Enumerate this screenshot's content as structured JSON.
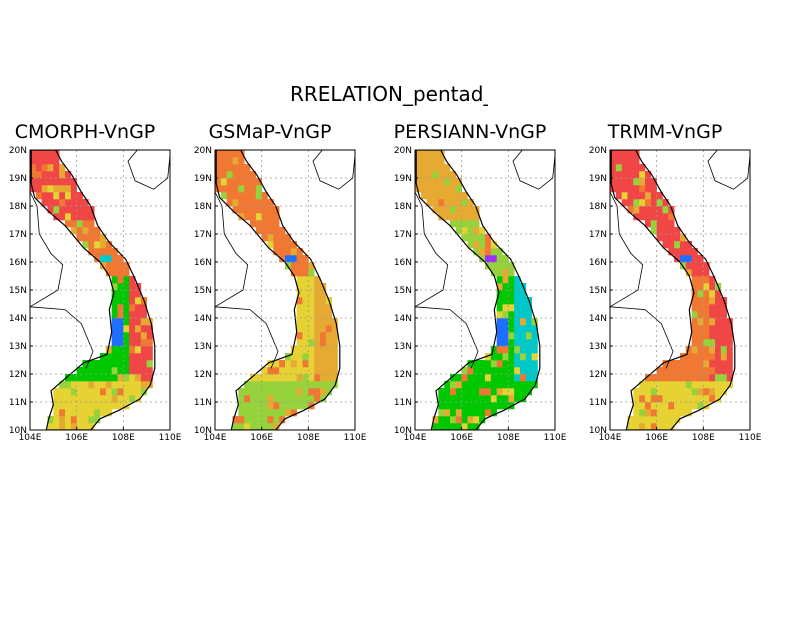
{
  "figure": {
    "title": "RRELATION_pentad_SC",
    "colors": {
      "frame": "#000000",
      "gridline": "#9a9a9a",
      "coast": "#000000",
      "land_border": "#000000"
    }
  },
  "map": {
    "lon_range": [
      104,
      110
    ],
    "lat_range": [
      10,
      20
    ],
    "x_ticks": [
      "104E",
      "106E",
      "108E",
      "110E"
    ],
    "y_ticks": [
      "10N",
      "11N",
      "12N",
      "13N",
      "14N",
      "15N",
      "16N",
      "17N",
      "18N",
      "19N",
      "20N"
    ],
    "grid": "dotted",
    "palette": {
      "purple": "#9b30ff",
      "blue": "#1e6eff",
      "cyan": "#00c8c8",
      "green": "#00c800",
      "lightgreen": "#96d23c",
      "yellow": "#e6d232",
      "orange": "#e6aa32",
      "darkorange": "#f07832",
      "red": "#f04646",
      "pink": "#f03c6e"
    }
  },
  "panels": [
    {
      "title": "CMORPH-VnGP",
      "colors_by_latitude": {
        "north": "red",
        "north_central": "darkorange",
        "central_coast": "red",
        "central_highlands": "green",
        "south": "yellow",
        "spots": [
          "cyan",
          "blue"
        ]
      }
    },
    {
      "title": "GSMaP-VnGP",
      "colors_by_latitude": {
        "north": "darkorange",
        "north_central": "darkorange",
        "central_coast": "orange",
        "central_highlands": "yellow",
        "south": "lightgreen",
        "spots": [
          "blue"
        ]
      }
    },
    {
      "title": "PERSIANN-VnGP",
      "colors_by_latitude": {
        "north": "orange",
        "north_central": "lightgreen",
        "central_coast": "cyan",
        "central_highlands": "green",
        "south": "green",
        "spots": [
          "purple",
          "blue"
        ]
      }
    },
    {
      "title": "TRMM-VnGP",
      "colors_by_latitude": {
        "north": "red",
        "north_central": "red",
        "central_coast": "red",
        "central_highlands": "darkorange",
        "south": "yellow",
        "spots": [
          "blue"
        ]
      }
    }
  ]
}
